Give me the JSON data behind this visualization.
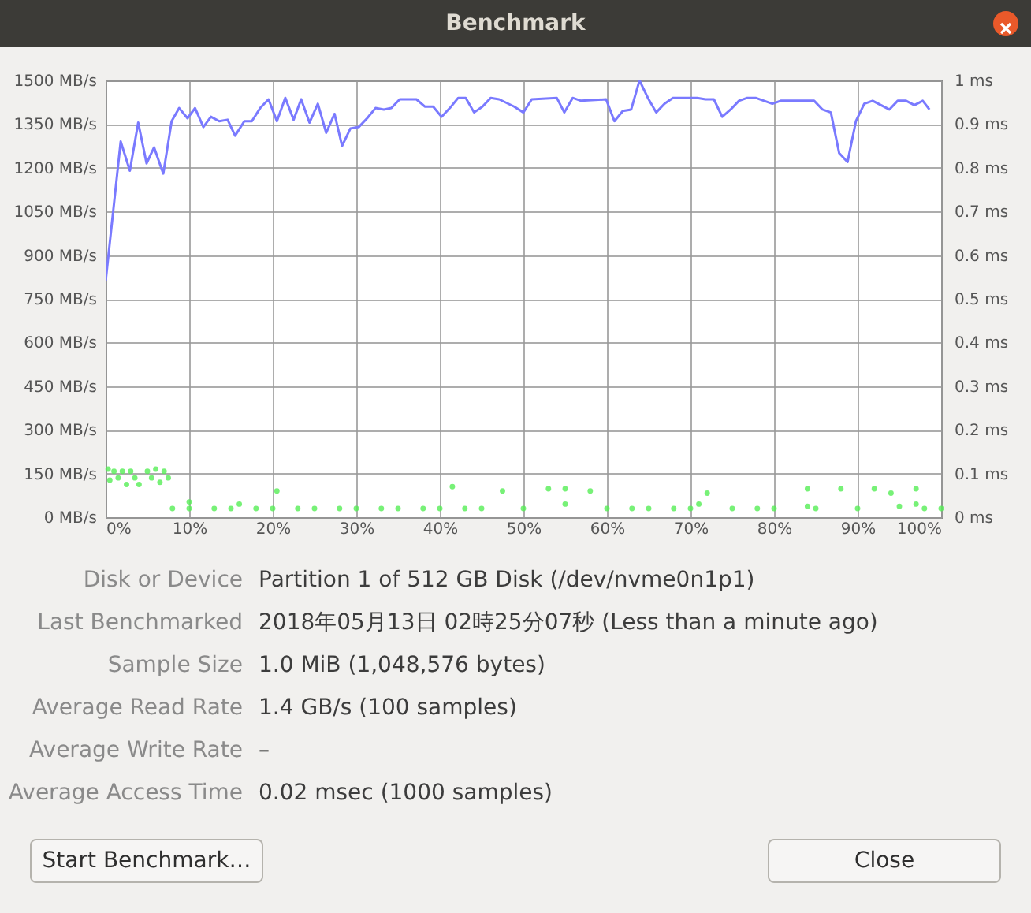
{
  "chart_data": {
    "type": "line",
    "title": "Benchmark",
    "xlim": [
      0,
      100
    ],
    "xticks": [
      {
        "value": 0,
        "label": "0%"
      },
      {
        "value": 10,
        "label": "10%"
      },
      {
        "value": 20,
        "label": "20%"
      },
      {
        "value": 30,
        "label": "30%"
      },
      {
        "value": 40,
        "label": "40%"
      },
      {
        "value": 50,
        "label": "50%"
      },
      {
        "value": 60,
        "label": "60%"
      },
      {
        "value": 70,
        "label": "70%"
      },
      {
        "value": 80,
        "label": "80%"
      },
      {
        "value": 90,
        "label": "90%"
      },
      {
        "value": 100,
        "label": "100%"
      }
    ],
    "ylim": [
      0,
      1500
    ],
    "yticks": [
      {
        "value": 0,
        "label": "0 MB/s"
      },
      {
        "value": 150,
        "label": "150 MB/s"
      },
      {
        "value": 300,
        "label": "300 MB/s"
      },
      {
        "value": 450,
        "label": "450 MB/s"
      },
      {
        "value": 600,
        "label": "600 MB/s"
      },
      {
        "value": 750,
        "label": "750 MB/s"
      },
      {
        "value": 900,
        "label": "900 MB/s"
      },
      {
        "value": 1050,
        "label": "1050 MB/s"
      },
      {
        "value": 1200,
        "label": "1200 MB/s"
      },
      {
        "value": 1350,
        "label": "1350 MB/s"
      },
      {
        "value": 1500,
        "label": "1500 MB/s"
      }
    ],
    "y2lim": [
      0,
      1
    ],
    "y2ticks": [
      {
        "value": 0,
        "label": "0 ms"
      },
      {
        "value": 0.1,
        "label": "0.1 ms"
      },
      {
        "value": 0.2,
        "label": "0.2 ms"
      },
      {
        "value": 0.3,
        "label": "0.3 ms"
      },
      {
        "value": 0.4,
        "label": "0.4 ms"
      },
      {
        "value": 0.5,
        "label": "0.5 ms"
      },
      {
        "value": 0.6,
        "label": "0.6 ms"
      },
      {
        "value": 0.7,
        "label": "0.7 ms"
      },
      {
        "value": 0.8,
        "label": "0.8 ms"
      },
      {
        "value": 0.9,
        "label": "0.9 ms"
      },
      {
        "value": 1,
        "label": "1 ms"
      }
    ],
    "grid": true,
    "series": [
      {
        "color": "#7a7aff",
        "marker": "none",
        "x": [
          0,
          1.8,
          2.9,
          3.9,
          4.9,
          5.8,
          6.9,
          7.9,
          8.8,
          9.8,
          10.7,
          11.7,
          12.6,
          13.6,
          14.6,
          15.5,
          16.6,
          17.5,
          18.5,
          19.5,
          20.5,
          21.5,
          22.5,
          23.4,
          24.4,
          25.4,
          26.4,
          27.4,
          28.3,
          29.3,
          30.3,
          31.3,
          32.3,
          33.3,
          34.2,
          35.2,
          37.2,
          38.2,
          39.2,
          40.2,
          41.2,
          42.2,
          43.1,
          44.1,
          45.1,
          46.1,
          47.1,
          48.9,
          50,
          51,
          54,
          54.9,
          55.9,
          56.9,
          59.9,
          60.9,
          61.9,
          62.9,
          63.9,
          64.9,
          65.9,
          66.9,
          67.9,
          70.8,
          71.8,
          72.8,
          73.8,
          74.8,
          75.8,
          76.8,
          77.8,
          79.8,
          80.8,
          84.8,
          85.8,
          86.8,
          87.8,
          88.8,
          89.8,
          90.8,
          91.8,
          93.8,
          94.8,
          95.8,
          96.8,
          97.8,
          98.6
        ],
        "values": [
          810,
          1290,
          1190,
          1355,
          1215,
          1270,
          1180,
          1360,
          1405,
          1370,
          1405,
          1340,
          1375,
          1360,
          1365,
          1310,
          1360,
          1360,
          1405,
          1435,
          1360,
          1440,
          1365,
          1435,
          1355,
          1420,
          1320,
          1385,
          1275,
          1335,
          1340,
          1370,
          1405,
          1400,
          1405,
          1435,
          1435,
          1410,
          1410,
          1375,
          1405,
          1440,
          1440,
          1390,
          1410,
          1440,
          1435,
          1410,
          1390,
          1435,
          1440,
          1390,
          1440,
          1430,
          1435,
          1360,
          1395,
          1400,
          1500,
          1440,
          1390,
          1420,
          1440,
          1440,
          1435,
          1435,
          1375,
          1400,
          1430,
          1440,
          1440,
          1420,
          1430,
          1430,
          1400,
          1390,
          1250,
          1220,
          1360,
          1420,
          1430,
          1400,
          1430,
          1430,
          1415,
          1430,
          1400
        ]
      },
      {
        "type": "scatter",
        "axis": "y2",
        "color": "#55ee55",
        "marker": "circle",
        "x": [
          0.3,
          0.5,
          1,
          1.5,
          2,
          2.5,
          3,
          3.5,
          4,
          5,
          5.5,
          6,
          6.5,
          7,
          7.5,
          8,
          10,
          10,
          13,
          15,
          16,
          18,
          20,
          20.5,
          23,
          25,
          28,
          30,
          33,
          35,
          38,
          40,
          41.5,
          43,
          45,
          47.5,
          50,
          53,
          55,
          55,
          58,
          60,
          63,
          65,
          68,
          70,
          71,
          72,
          75,
          78,
          80,
          84,
          84,
          85,
          88,
          90,
          92,
          94,
          95,
          97,
          97,
          98,
          100
        ],
        "values": [
          0.11,
          0.085,
          0.105,
          0.09,
          0.105,
          0.075,
          0.105,
          0.09,
          0.075,
          0.105,
          0.09,
          0.11,
          0.08,
          0.105,
          0.09,
          0.02,
          0.02,
          0.035,
          0.02,
          0.02,
          0.03,
          0.02,
          0.02,
          0.06,
          0.02,
          0.02,
          0.02,
          0.02,
          0.02,
          0.02,
          0.02,
          0.02,
          0.07,
          0.02,
          0.02,
          0.06,
          0.02,
          0.065,
          0.065,
          0.03,
          0.06,
          0.02,
          0.02,
          0.02,
          0.02,
          0.02,
          0.03,
          0.055,
          0.02,
          0.02,
          0.02,
          0.065,
          0.025,
          0.02,
          0.065,
          0.02,
          0.065,
          0.055,
          0.025,
          0.065,
          0.03,
          0.02,
          0.02
        ]
      }
    ],
    "annotations": [
      "Disk or Device",
      "Partition 1 of 512 GB Disk (/dev/nvme0n1p1)",
      "Last Benchmarked",
      "2018年05月13日 02時25分07秒 (Less than a minute ago)",
      "Sample Size",
      "1.0 MiB (1,048,576 bytes)",
      "Average Read Rate",
      "1.4 GB/s (100 samples)",
      "Average Write Rate",
      "–",
      "Average Access Time",
      "0.02 msec (1000 samples)",
      "Start Benchmark…",
      "Close"
    ]
  }
}
